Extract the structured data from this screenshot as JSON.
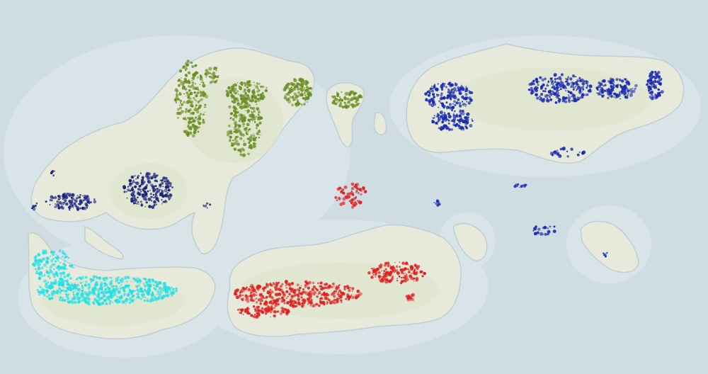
{
  "map": {
    "colors": {
      "ocean": "#cfdde2",
      "ocean_shallow": "#d9e5e8",
      "land": "#e9ebdc",
      "land_green": "#dde3c8",
      "coast": "#c3d3d8"
    },
    "regions": [
      {
        "id": "northwest-forest",
        "color": "#6b8e23"
      },
      {
        "id": "west-blue",
        "color": "#1a237e"
      },
      {
        "id": "northeast-blue",
        "color": "#1a2bb0"
      },
      {
        "id": "southwest-cyan",
        "color": "#22e0e6"
      },
      {
        "id": "south-red",
        "color": "#e02020"
      }
    ]
  }
}
